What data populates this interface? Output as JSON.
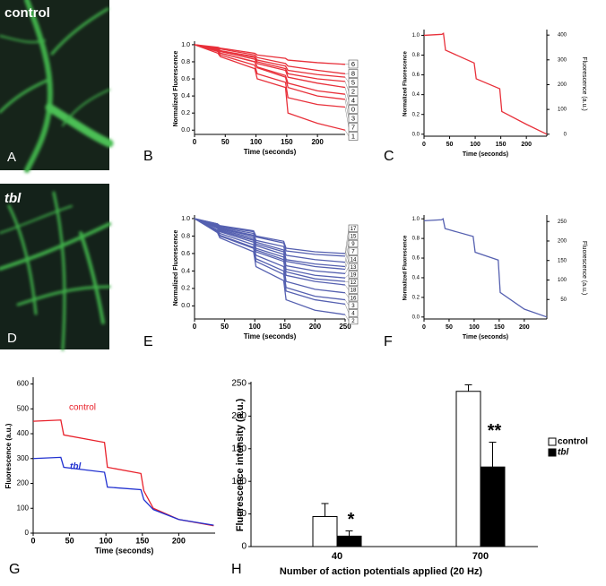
{
  "images": [
    {
      "label": "control",
      "letter": "A"
    },
    {
      "label": "tbl",
      "letter": "D"
    }
  ],
  "chart_data": [
    {
      "type": "line",
      "letter": "B",
      "ylabel": "Normalized Fluorescence",
      "xlabel": "Time (seconds)",
      "color": "#e8303a",
      "x": [
        0,
        38,
        42,
        98,
        102,
        148,
        152,
        200,
        245
      ],
      "xlim": [
        0,
        245
      ],
      "xticks": [
        0,
        50,
        100,
        150,
        200
      ],
      "ylim": [
        -0.05,
        1.02
      ],
      "yticks": [
        {
          "value": 0,
          "label": "0.0"
        },
        0.2,
        0.4,
        0.6,
        0.8,
        {
          "value": 1,
          "label": "1.0"
        }
      ],
      "series": [
        {
          "name": "6",
          "values": [
            1,
            0.97,
            0.96,
            0.9,
            0.88,
            0.84,
            0.82,
            0.79,
            0.77
          ]
        },
        {
          "name": "8",
          "values": [
            1,
            0.96,
            0.95,
            0.88,
            0.85,
            0.78,
            0.75,
            0.7,
            0.66
          ]
        },
        {
          "name": "5",
          "values": [
            1,
            0.95,
            0.93,
            0.86,
            0.82,
            0.75,
            0.7,
            0.65,
            0.62
          ]
        },
        {
          "name": "2",
          "values": [
            1,
            0.95,
            0.93,
            0.85,
            0.8,
            0.72,
            0.66,
            0.6,
            0.57
          ]
        },
        {
          "name": "4",
          "values": [
            1,
            0.94,
            0.92,
            0.83,
            0.78,
            0.7,
            0.62,
            0.55,
            0.5
          ]
        },
        {
          "name": "0",
          "values": [
            1,
            0.93,
            0.9,
            0.8,
            0.74,
            0.64,
            0.55,
            0.46,
            0.42
          ]
        },
        {
          "name": "3",
          "values": [
            1,
            0.93,
            0.9,
            0.8,
            0.73,
            0.62,
            0.5,
            0.4,
            0.36
          ]
        },
        {
          "name": "7",
          "values": [
            1,
            0.92,
            0.88,
            0.76,
            0.66,
            0.56,
            0.38,
            0.3,
            0.27
          ]
        },
        {
          "name": "1",
          "values": [
            1,
            0.9,
            0.86,
            0.72,
            0.6,
            0.5,
            0.2,
            0.08,
            0
          ]
        }
      ]
    },
    {
      "type": "line",
      "letter": "C",
      "ylabel": "Normalized Fluorescence",
      "y2label": "Fluorescence (a.u.)",
      "xlabel": "Time (seconds)",
      "color": "#e8303a",
      "x": [
        0,
        35,
        38,
        42,
        98,
        102,
        148,
        152,
        200,
        240
      ],
      "xlim": [
        0,
        240
      ],
      "xticks": [
        0,
        50,
        100,
        150,
        200
      ],
      "ylim": [
        -0.02,
        1.04
      ],
      "yticks": [
        {
          "value": 0,
          "label": "0.0"
        },
        0.2,
        0.4,
        0.6,
        0.8,
        {
          "value": 1,
          "label": "1.0"
        }
      ],
      "y2lim": [
        -8,
        415
      ],
      "y2ticks": [
        0,
        100,
        200,
        300,
        400
      ],
      "series": [
        {
          "values": [
            1,
            1.01,
            1.02,
            0.85,
            0.72,
            0.56,
            0.46,
            0.23,
            0.1,
            0
          ]
        }
      ]
    },
    {
      "type": "line",
      "letter": "E",
      "ylabel": "Normalized Fluorescence",
      "xlabel": "Time (seconds)",
      "color": "#5560b0",
      "x": [
        0,
        38,
        42,
        98,
        102,
        148,
        152,
        200,
        250
      ],
      "xlim": [
        0,
        250
      ],
      "xticks": [
        0,
        50,
        100,
        150,
        200,
        250
      ],
      "ylim": [
        -0.15,
        1.02
      ],
      "yticks": [
        {
          "value": 0,
          "label": "0.0"
        },
        0.2,
        0.4,
        0.6,
        0.8,
        {
          "value": 1,
          "label": "1.0"
        }
      ],
      "series": [
        {
          "name": "17",
          "values": [
            1,
            0.94,
            0.92,
            0.86,
            0.8,
            0.74,
            0.66,
            0.62,
            0.6
          ]
        },
        {
          "name": "15",
          "values": [
            1,
            0.94,
            0.91,
            0.85,
            0.79,
            0.72,
            0.63,
            0.59,
            0.57
          ]
        },
        {
          "name": "9",
          "values": [
            1,
            0.93,
            0.9,
            0.83,
            0.75,
            0.68,
            0.58,
            0.53,
            0.5
          ]
        },
        {
          "name": "7",
          "values": [
            1,
            0.92,
            0.89,
            0.81,
            0.73,
            0.64,
            0.53,
            0.48,
            0.45
          ]
        },
        {
          "name": "14",
          "values": [
            1,
            0.91,
            0.88,
            0.8,
            0.71,
            0.62,
            0.51,
            0.45,
            0.42
          ]
        },
        {
          "name": "13",
          "values": [
            1,
            0.91,
            0.87,
            0.78,
            0.69,
            0.59,
            0.46,
            0.4,
            0.37
          ]
        },
        {
          "name": "19",
          "values": [
            1,
            0.9,
            0.86,
            0.76,
            0.66,
            0.56,
            0.42,
            0.35,
            0.32
          ]
        },
        {
          "name": "12",
          "values": [
            1,
            0.89,
            0.86,
            0.75,
            0.64,
            0.53,
            0.39,
            0.31,
            0.28
          ]
        },
        {
          "name": "18",
          "values": [
            1,
            0.89,
            0.85,
            0.73,
            0.62,
            0.51,
            0.35,
            0.28,
            0.24
          ]
        },
        {
          "name": "16",
          "values": [
            1,
            0.87,
            0.83,
            0.7,
            0.58,
            0.45,
            0.28,
            0.19,
            0.15
          ]
        },
        {
          "name": "3",
          "values": [
            1,
            0.86,
            0.81,
            0.67,
            0.54,
            0.4,
            0.21,
            0.11,
            0.07
          ]
        },
        {
          "name": "4",
          "values": [
            1,
            0.85,
            0.8,
            0.66,
            0.51,
            0.36,
            0.17,
            0.07,
            0.02
          ]
        },
        {
          "name": "2",
          "values": [
            1,
            0.84,
            0.78,
            0.62,
            0.45,
            0.29,
            0.07,
            -0.05,
            -0.1
          ]
        }
      ]
    },
    {
      "type": "line",
      "letter": "F",
      "ylabel": "Normalized Fluorescence",
      "y2label": "Fluorescence (a.u.)",
      "xlabel": "Time (seconds)",
      "color": "#5560b0",
      "x": [
        0,
        35,
        38,
        42,
        98,
        102,
        148,
        152,
        200,
        245
      ],
      "xlim": [
        0,
        245
      ],
      "xticks": [
        0,
        50,
        100,
        150,
        200
      ],
      "ylim": [
        -0.02,
        1.02
      ],
      "yticks": [
        {
          "value": 0,
          "label": "0.0"
        },
        0.2,
        0.4,
        0.6,
        0.8,
        {
          "value": 1,
          "label": "1.0"
        }
      ],
      "y2lim": [
        0,
        262
      ],
      "y2ticks": [
        50,
        100,
        150,
        200,
        250
      ],
      "series": [
        {
          "values": [
            0.98,
            0.99,
            1,
            0.9,
            0.82,
            0.66,
            0.58,
            0.25,
            0.08,
            0
          ]
        }
      ]
    },
    {
      "type": "line",
      "letter": "G",
      "ylabel": "Fluorescence (a.u.)",
      "xlabel": "Time (seconds)",
      "x": [
        0,
        38,
        42,
        98,
        102,
        148,
        152,
        165,
        200,
        248
      ],
      "xlim": [
        0,
        250
      ],
      "xticks": [
        0,
        50,
        100,
        150,
        200
      ],
      "ylim": [
        0,
        620
      ],
      "yticks": [
        0,
        100,
        200,
        300,
        400,
        500,
        600
      ],
      "series": [
        {
          "name": "control",
          "color": "#e8202a",
          "values": [
            450,
            455,
            395,
            365,
            265,
            240,
            170,
            100,
            55,
            30
          ]
        },
        {
          "name": "tbl",
          "color": "#2030d0",
          "values": [
            300,
            305,
            265,
            245,
            185,
            175,
            135,
            95,
            55,
            32
          ]
        }
      ]
    },
    {
      "type": "bar",
      "letter": "H",
      "ylabel": "Fluorescence intensity (a.u.)",
      "xlabel": "Number of action potentials applied (20 Hz)",
      "categories": [
        "40",
        "700"
      ],
      "ylim": [
        0,
        250
      ],
      "yticks": [
        0,
        50,
        100,
        150,
        200,
        250
      ],
      "series": [
        {
          "name": "control",
          "color": "#ffffff",
          "values": [
            46,
            238
          ],
          "errors": [
            20,
            10
          ]
        },
        {
          "name": "tbl",
          "color": "#000000",
          "values": [
            16,
            122
          ],
          "errors": [
            8,
            38
          ],
          "annotations": [
            "*",
            "**"
          ]
        }
      ]
    }
  ]
}
